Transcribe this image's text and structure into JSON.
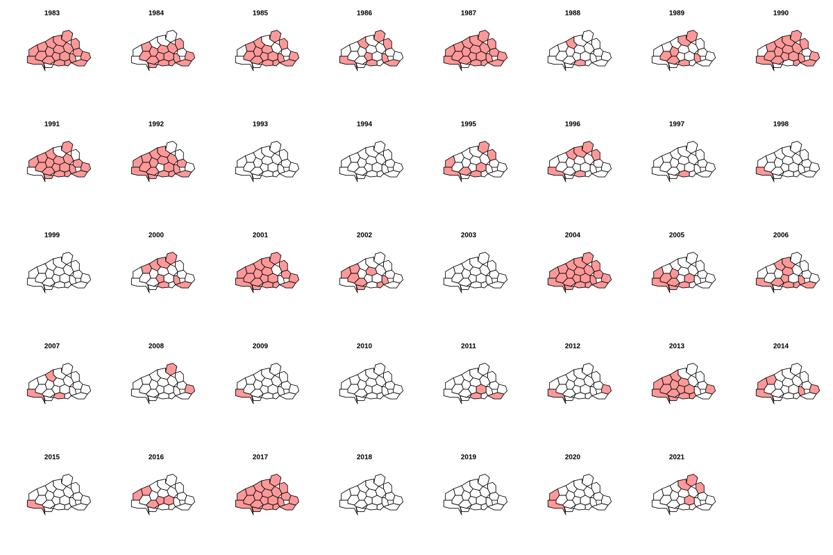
{
  "figure": {
    "colors": {
      "highlight": "#ff9999",
      "base": "#ffffff",
      "border": "#000000"
    },
    "map_panels": [
      {
        "year": "1983",
        "highlighted_regions": [
          0,
          1,
          2,
          3,
          4,
          5,
          6,
          7,
          8,
          9,
          10,
          11,
          12,
          13,
          14,
          15,
          16,
          18,
          19,
          20
        ]
      },
      {
        "year": "1984",
        "highlighted_regions": [
          1,
          3,
          5,
          6,
          7,
          10,
          11,
          12,
          13,
          14,
          15,
          17,
          18,
          19,
          20
        ]
      },
      {
        "year": "1985",
        "highlighted_regions": [
          0,
          1,
          3,
          4,
          5,
          6,
          10,
          11,
          12,
          13,
          14,
          15,
          18,
          19,
          20
        ]
      },
      {
        "year": "1986",
        "highlighted_regions": [
          0,
          1,
          4,
          11,
          14,
          15,
          16,
          20
        ]
      },
      {
        "year": "1987",
        "highlighted_regions": [
          0,
          1,
          2,
          3,
          4,
          5,
          6,
          7,
          8,
          9,
          10,
          11,
          12,
          13,
          14,
          15,
          16,
          18,
          19,
          20
        ]
      },
      {
        "year": "1988",
        "highlighted_regions": [
          4,
          15
        ]
      },
      {
        "year": "1989",
        "highlighted_regions": [
          0,
          2,
          6,
          10,
          12,
          14,
          15
        ]
      },
      {
        "year": "1990",
        "highlighted_regions": [
          0,
          1,
          2,
          3,
          4,
          5,
          6,
          7,
          10,
          11,
          12,
          13,
          14,
          16,
          18,
          19,
          20
        ]
      },
      {
        "year": "1991",
        "highlighted_regions": [
          0,
          3,
          4,
          5,
          6,
          7,
          8,
          9,
          10,
          11,
          12,
          13,
          14,
          15,
          17,
          18,
          19,
          20
        ]
      },
      {
        "year": "1992",
        "highlighted_regions": [
          2,
          3,
          4,
          5,
          6,
          7,
          8,
          9,
          10,
          12,
          13,
          14,
          15,
          16,
          17,
          19,
          20
        ]
      },
      {
        "year": "1993",
        "highlighted_regions": []
      },
      {
        "year": "1994",
        "highlighted_regions": []
      },
      {
        "year": "1995",
        "highlighted_regions": [
          0,
          1,
          9,
          12,
          13,
          15,
          16
        ]
      },
      {
        "year": "1996",
        "highlighted_regions": [
          0,
          1,
          2,
          4,
          15,
          16
        ]
      },
      {
        "year": "1997",
        "highlighted_regions": [
          15
        ]
      },
      {
        "year": "1998",
        "highlighted_regions": [
          16
        ]
      },
      {
        "year": "1999",
        "highlighted_regions": []
      },
      {
        "year": "2000",
        "highlighted_regions": [
          0,
          2,
          3,
          4,
          11,
          14,
          15,
          20
        ]
      },
      {
        "year": "2001",
        "highlighted_regions": [
          0,
          1,
          2,
          3,
          4,
          5,
          6,
          8,
          9,
          10,
          11,
          12,
          13,
          15,
          16,
          17,
          18,
          19,
          20
        ]
      },
      {
        "year": "2002",
        "highlighted_regions": [
          3,
          5,
          9,
          10,
          12,
          14,
          17,
          19
        ]
      },
      {
        "year": "2003",
        "highlighted_regions": []
      },
      {
        "year": "2004",
        "highlighted_regions": [
          0,
          1,
          2,
          3,
          4,
          5,
          6,
          7,
          8,
          9,
          10,
          11,
          12,
          13,
          14,
          15,
          16,
          17,
          18,
          19,
          20
        ]
      },
      {
        "year": "2005",
        "highlighted_regions": [
          6,
          9,
          10,
          12,
          13,
          15,
          16,
          17
        ]
      },
      {
        "year": "2006",
        "highlighted_regions": [
          2,
          4,
          5,
          11,
          12,
          14,
          15,
          16,
          19,
          20
        ]
      },
      {
        "year": "2007",
        "highlighted_regions": [
          4,
          15,
          16
        ]
      },
      {
        "year": "2008",
        "highlighted_regions": [
          0,
          18
        ]
      },
      {
        "year": "2009",
        "highlighted_regions": [
          16
        ]
      },
      {
        "year": "2010",
        "highlighted_regions": []
      },
      {
        "year": "2011",
        "highlighted_regions": [
          13,
          15,
          20
        ]
      },
      {
        "year": "2012",
        "highlighted_regions": [
          16,
          18
        ]
      },
      {
        "year": "2013",
        "highlighted_regions": [
          3,
          4,
          5,
          6,
          9,
          10,
          11,
          12,
          13,
          15,
          16,
          17,
          18,
          19
        ]
      },
      {
        "year": "2014",
        "highlighted_regions": [
          3,
          9,
          14,
          16,
          18
        ]
      },
      {
        "year": "2015",
        "highlighted_regions": [
          16
        ]
      },
      {
        "year": "2016",
        "highlighted_regions": [
          3,
          9,
          11,
          12,
          13
        ]
      },
      {
        "year": "2017",
        "highlighted_regions": [
          0,
          1,
          2,
          3,
          4,
          5,
          6,
          7,
          8,
          9,
          10,
          11,
          12,
          13,
          14,
          15,
          16,
          17,
          18,
          19,
          20
        ]
      },
      {
        "year": "2018",
        "highlighted_regions": []
      },
      {
        "year": "2019",
        "highlighted_regions": []
      },
      {
        "year": "2020",
        "highlighted_regions": [
          9,
          16
        ]
      },
      {
        "year": "2021",
        "highlighted_regions": [
          0,
          1,
          2,
          13
        ]
      }
    ]
  }
}
